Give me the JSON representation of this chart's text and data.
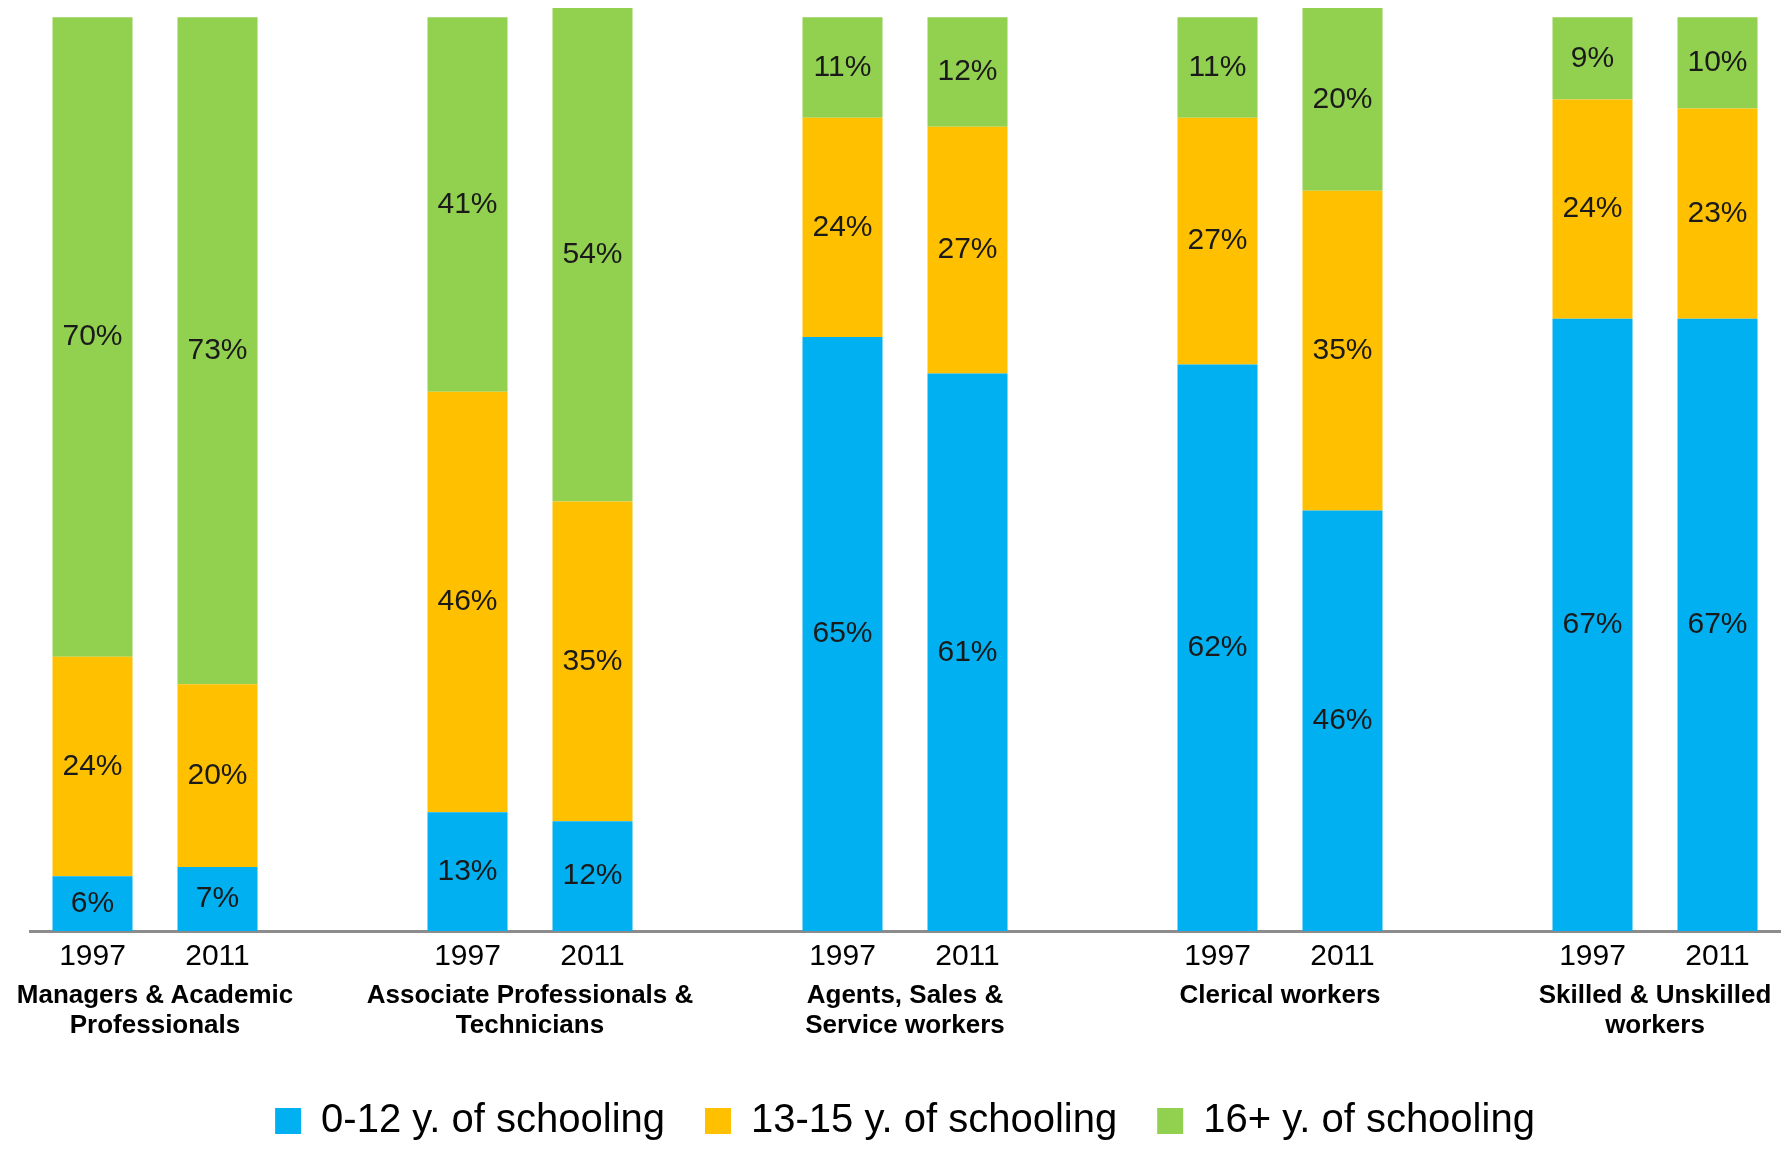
{
  "chart_data": {
    "type": "bar",
    "stacked": true,
    "legend": "bottom",
    "grid": false,
    "categories": [
      "1997",
      "2011",
      null,
      "1997",
      "2011",
      null,
      "1997",
      "2011",
      null,
      "1997",
      "2011",
      null,
      "1997",
      "2011"
    ],
    "series": [
      {
        "name": "0-12 y. of schooling",
        "color": "#00b0f0",
        "values": [
          6,
          7,
          null,
          13,
          12,
          null,
          65,
          61,
          null,
          62,
          46,
          null,
          67,
          67
        ],
        "value_labels": [
          "6%",
          "7%",
          null,
          "13%",
          "12%",
          null,
          "65%",
          "61%",
          null,
          "62%",
          "46%",
          null,
          "67%",
          "67%"
        ]
      },
      {
        "name": "13-15 y. of schooling",
        "color": "#ffc000",
        "values": [
          24,
          20,
          null,
          46,
          35,
          null,
          24,
          27,
          null,
          27,
          35,
          null,
          24,
          23
        ],
        "value_labels": [
          "24%",
          "20%",
          null,
          "46%",
          "35%",
          null,
          "24%",
          "27%",
          null,
          "27%",
          "35%",
          null,
          "24%",
          "23%"
        ]
      },
      {
        "name": "16+ y. of schooling",
        "color": "#92d050",
        "values": [
          70,
          73,
          null,
          41,
          54,
          null,
          11,
          12,
          null,
          11,
          20,
          null,
          9,
          10
        ],
        "value_labels": [
          "70%",
          "73%",
          null,
          "41%",
          "54%",
          null,
          "11%",
          "12%",
          null,
          "11%",
          "20%",
          null,
          "9%",
          "10%"
        ]
      }
    ],
    "annotations": [
      "Managers & Academic\nProfessionals",
      "Associate Professionals &\nTechnicians",
      "Agents, Sales &\nService workers",
      "Clerical workers",
      "Skilled & Unskilled\nworkers"
    ]
  }
}
